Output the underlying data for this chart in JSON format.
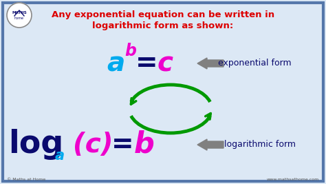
{
  "bg_color": "#dce8f5",
  "border_color": "#5577aa",
  "title_line1": "Any exponential equation can be written in",
  "title_line2": "logarithmic form as shown:",
  "title_color": "#dd0000",
  "exp_label": "exponential form",
  "log_label": "logarithmic form",
  "arrow_color": "#808080",
  "cyan_color": "#00aaee",
  "magenta_color": "#ee00cc",
  "green_color": "#009900",
  "dark_blue": "#0a0a6e",
  "footer_left": "© Maths at Home",
  "footer_right": "www.mathsathome.com"
}
